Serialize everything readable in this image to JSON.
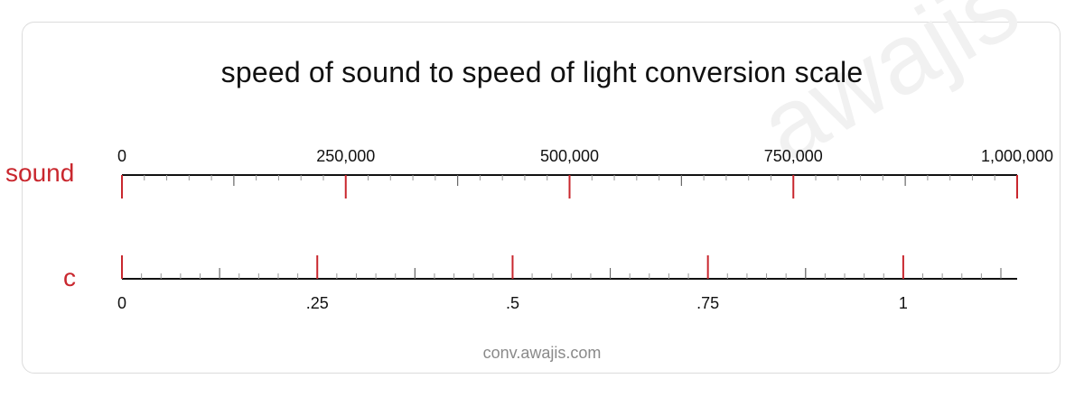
{
  "title": "speed of sound to speed of light conversion scale",
  "watermark": "awajis",
  "footer": "conv.awajis.com",
  "colors": {
    "accent": "#c9272e",
    "axis": "#111111",
    "minor_tick": "#999999",
    "frame": "#dcdcdc",
    "footer": "#8a8a8a"
  },
  "top_scale": {
    "unit": "sound",
    "range": [
      0,
      1000000
    ],
    "labels": [
      "0",
      "250,000",
      "500,000",
      "750,000",
      "1,000,000"
    ],
    "label_values": [
      0,
      250000,
      500000,
      750000,
      1000000
    ],
    "major_values": [
      0,
      250000,
      500000,
      750000,
      1000000
    ],
    "mid_values": [
      125000,
      375000,
      625000,
      875000
    ],
    "minor_step": 25000
  },
  "bottom_scale": {
    "unit": "c",
    "range": [
      0,
      1.1458
    ],
    "labels": [
      "0",
      ".25",
      ".5",
      ".75",
      "1"
    ],
    "label_values": [
      0,
      0.25,
      0.5,
      0.75,
      1
    ],
    "major_values": [
      0,
      0.25,
      0.5,
      0.75,
      1
    ],
    "mid_values": [
      0.125,
      0.375,
      0.625,
      0.875,
      1.125
    ],
    "minor_step": 0.025
  }
}
